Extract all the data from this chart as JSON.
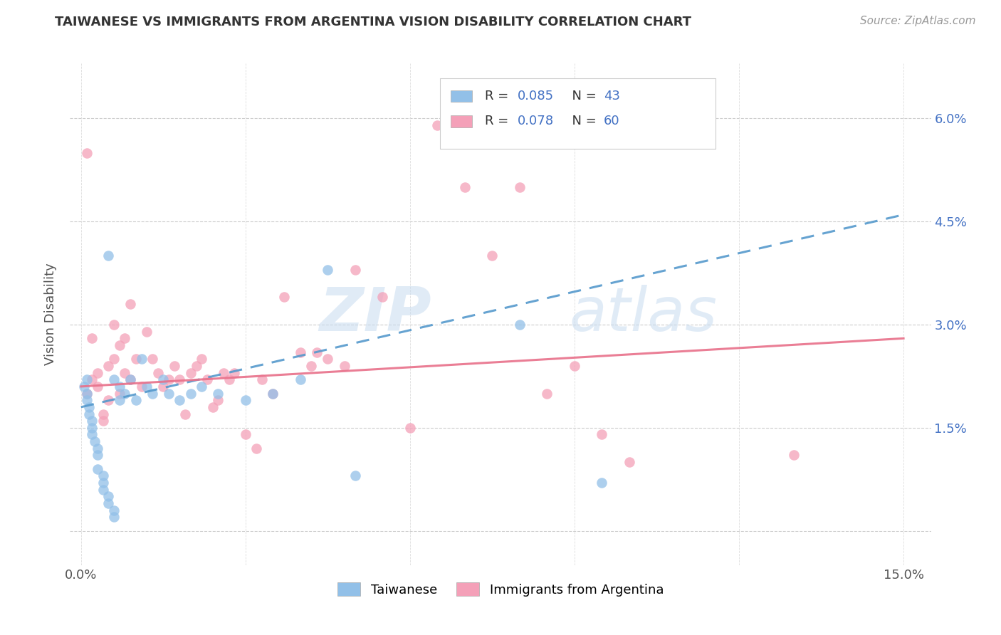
{
  "title": "TAIWANESE VS IMMIGRANTS FROM ARGENTINA VISION DISABILITY CORRELATION CHART",
  "source": "Source: ZipAtlas.com",
  "ylabel": "Vision Disability",
  "xlabel_ticks": [
    "0.0%",
    "",
    "",
    "",
    "",
    "15.0%"
  ],
  "xlabel_vals": [
    0.0,
    0.03,
    0.06,
    0.09,
    0.12,
    0.15
  ],
  "ylabel_ticks": [
    "",
    "1.5%",
    "3.0%",
    "4.5%",
    "6.0%"
  ],
  "ylabel_vals": [
    0.0,
    0.015,
    0.03,
    0.045,
    0.06
  ],
  "xlim": [
    -0.002,
    0.155
  ],
  "ylim": [
    -0.005,
    0.068
  ],
  "taiwan_R": 0.085,
  "taiwan_N": 43,
  "argentina_R": 0.078,
  "argentina_N": 60,
  "taiwan_color": "#92C0E8",
  "argentina_color": "#F4A0B8",
  "taiwan_line_color": "#5599CC",
  "argentina_line_color": "#E8708A",
  "watermark_zip": "ZIP",
  "watermark_atlas": "atlas",
  "legend_taiwanese": "Taiwanese",
  "legend_argentina": "Immigrants from Argentina",
  "tw_x": [
    0.0005,
    0.001,
    0.001,
    0.001,
    0.0015,
    0.0015,
    0.002,
    0.002,
    0.002,
    0.0025,
    0.003,
    0.003,
    0.003,
    0.004,
    0.004,
    0.004,
    0.005,
    0.005,
    0.006,
    0.006,
    0.006,
    0.007,
    0.007,
    0.008,
    0.009,
    0.01,
    0.011,
    0.012,
    0.013,
    0.015,
    0.016,
    0.018,
    0.02,
    0.022,
    0.025,
    0.03,
    0.035,
    0.04,
    0.045,
    0.05,
    0.08,
    0.095,
    0.005
  ],
  "tw_y": [
    0.021,
    0.022,
    0.02,
    0.019,
    0.018,
    0.017,
    0.016,
    0.015,
    0.014,
    0.013,
    0.012,
    0.011,
    0.009,
    0.008,
    0.007,
    0.006,
    0.005,
    0.004,
    0.003,
    0.002,
    0.022,
    0.019,
    0.021,
    0.02,
    0.022,
    0.019,
    0.025,
    0.021,
    0.02,
    0.022,
    0.02,
    0.019,
    0.02,
    0.021,
    0.02,
    0.019,
    0.02,
    0.022,
    0.038,
    0.008,
    0.03,
    0.007,
    0.04
  ],
  "ar_x": [
    0.001,
    0.002,
    0.002,
    0.003,
    0.003,
    0.004,
    0.004,
    0.005,
    0.005,
    0.006,
    0.006,
    0.007,
    0.007,
    0.008,
    0.008,
    0.009,
    0.009,
    0.01,
    0.011,
    0.012,
    0.013,
    0.014,
    0.015,
    0.016,
    0.017,
    0.018,
    0.019,
    0.02,
    0.021,
    0.022,
    0.023,
    0.024,
    0.025,
    0.026,
    0.027,
    0.028,
    0.03,
    0.032,
    0.033,
    0.035,
    0.037,
    0.04,
    0.042,
    0.043,
    0.045,
    0.048,
    0.05,
    0.055,
    0.06,
    0.065,
    0.07,
    0.075,
    0.08,
    0.085,
    0.09,
    0.095,
    0.1,
    0.105,
    0.13,
    0.001
  ],
  "ar_y": [
    0.02,
    0.022,
    0.028,
    0.021,
    0.023,
    0.017,
    0.016,
    0.024,
    0.019,
    0.03,
    0.025,
    0.027,
    0.02,
    0.028,
    0.023,
    0.033,
    0.022,
    0.025,
    0.021,
    0.029,
    0.025,
    0.023,
    0.021,
    0.022,
    0.024,
    0.022,
    0.017,
    0.023,
    0.024,
    0.025,
    0.022,
    0.018,
    0.019,
    0.023,
    0.022,
    0.023,
    0.014,
    0.012,
    0.022,
    0.02,
    0.034,
    0.026,
    0.024,
    0.026,
    0.025,
    0.024,
    0.038,
    0.034,
    0.015,
    0.059,
    0.05,
    0.04,
    0.05,
    0.02,
    0.024,
    0.014,
    0.01,
    0.058,
    0.011,
    0.055
  ],
  "tw_line_x0": 0.0,
  "tw_line_y0": 0.018,
  "tw_line_x1": 0.15,
  "tw_line_y1": 0.046,
  "ar_line_x0": 0.0,
  "ar_line_y0": 0.021,
  "ar_line_x1": 0.15,
  "ar_line_y1": 0.028
}
